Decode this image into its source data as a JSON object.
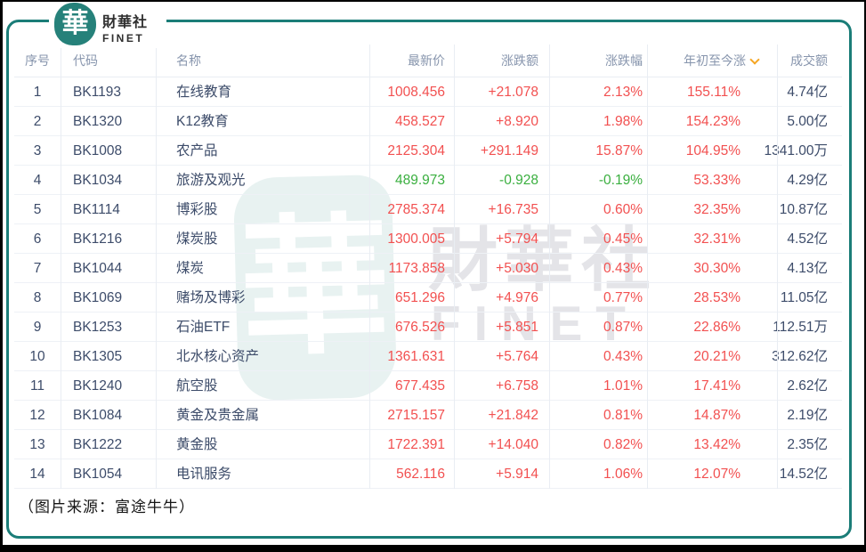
{
  "logo": {
    "seal_char": "華",
    "brand_cn": "財華社",
    "brand_en": "FINET"
  },
  "watermark": {
    "seal_char": "華",
    "text_cn": "財華社",
    "text_en": "FINET"
  },
  "colors": {
    "teal": "#1b7d78",
    "up_red": "#f25050",
    "down_green": "#3aaf3f",
    "sort_orange": "#f5a623",
    "text_dark": "#3d4c6a",
    "header_gray": "#8795ad"
  },
  "table": {
    "headers": [
      {
        "key": "seq",
        "label": "序号"
      },
      {
        "key": "code",
        "label": "代码"
      },
      {
        "key": "name",
        "label": "名称"
      },
      {
        "key": "price",
        "label": "最新价"
      },
      {
        "key": "change",
        "label": "涨跌额"
      },
      {
        "key": "pct",
        "label": "涨跌幅"
      },
      {
        "key": "ytd",
        "label": "年初至今涨",
        "sorted": true
      },
      {
        "key": "turnover",
        "label": "成交额"
      }
    ],
    "rows": [
      {
        "seq": "1",
        "code": "BK1193",
        "name": "在线教育",
        "price": "1008.456",
        "change": "+21.078",
        "pct": "2.13%",
        "ytd": "155.11%",
        "turnover": "4.74亿",
        "trend": "up"
      },
      {
        "seq": "2",
        "code": "BK1320",
        "name": "K12教育",
        "price": "458.527",
        "change": "+8.920",
        "pct": "1.98%",
        "ytd": "154.23%",
        "turnover": "5.00亿",
        "trend": "up"
      },
      {
        "seq": "3",
        "code": "BK1008",
        "name": "农产品",
        "price": "2125.304",
        "change": "+291.149",
        "pct": "15.87%",
        "ytd": "104.95%",
        "turnover": "1341.00万",
        "trend": "up"
      },
      {
        "seq": "4",
        "code": "BK1034",
        "name": "旅游及观光",
        "price": "489.973",
        "change": "-0.928",
        "pct": "-0.19%",
        "ytd": "53.33%",
        "turnover": "4.29亿",
        "trend": "down"
      },
      {
        "seq": "5",
        "code": "BK1114",
        "name": "博彩股",
        "price": "2785.374",
        "change": "+16.735",
        "pct": "0.60%",
        "ytd": "32.35%",
        "turnover": "10.87亿",
        "trend": "up"
      },
      {
        "seq": "6",
        "code": "BK1216",
        "name": "煤炭股",
        "price": "1300.005",
        "change": "+5.794",
        "pct": "0.45%",
        "ytd": "32.31%",
        "turnover": "4.52亿",
        "trend": "up"
      },
      {
        "seq": "7",
        "code": "BK1044",
        "name": "煤炭",
        "price": "1173.858",
        "change": "+5.030",
        "pct": "0.43%",
        "ytd": "30.30%",
        "turnover": "4.13亿",
        "trend": "up"
      },
      {
        "seq": "8",
        "code": "BK1069",
        "name": "赌场及博彩",
        "price": "651.296",
        "change": "+4.976",
        "pct": "0.77%",
        "ytd": "28.53%",
        "turnover": "11.05亿",
        "trend": "up"
      },
      {
        "seq": "9",
        "code": "BK1253",
        "name": "石油ETF",
        "price": "676.526",
        "change": "+5.851",
        "pct": "0.87%",
        "ytd": "22.86%",
        "turnover": "112.51万",
        "trend": "up"
      },
      {
        "seq": "10",
        "code": "BK1305",
        "name": "北水核心资产",
        "price": "1361.631",
        "change": "+5.764",
        "pct": "0.43%",
        "ytd": "20.21%",
        "turnover": "312.62亿",
        "trend": "up"
      },
      {
        "seq": "11",
        "code": "BK1240",
        "name": "航空股",
        "price": "677.435",
        "change": "+6.758",
        "pct": "1.01%",
        "ytd": "17.41%",
        "turnover": "2.62亿",
        "trend": "up"
      },
      {
        "seq": "12",
        "code": "BK1084",
        "name": "黄金及贵金属",
        "price": "2715.157",
        "change": "+21.842",
        "pct": "0.81%",
        "ytd": "14.87%",
        "turnover": "2.19亿",
        "trend": "up"
      },
      {
        "seq": "13",
        "code": "BK1222",
        "name": "黄金股",
        "price": "1722.391",
        "change": "+14.040",
        "pct": "0.82%",
        "ytd": "13.42%",
        "turnover": "2.35亿",
        "trend": "up"
      },
      {
        "seq": "14",
        "code": "BK1054",
        "name": "电讯服务",
        "price": "562.116",
        "change": "+5.914",
        "pct": "1.06%",
        "ytd": "12.07%",
        "turnover": "14.52亿",
        "trend": "up"
      }
    ]
  },
  "footer": {
    "caption": "（图片来源：富途牛牛）"
  }
}
